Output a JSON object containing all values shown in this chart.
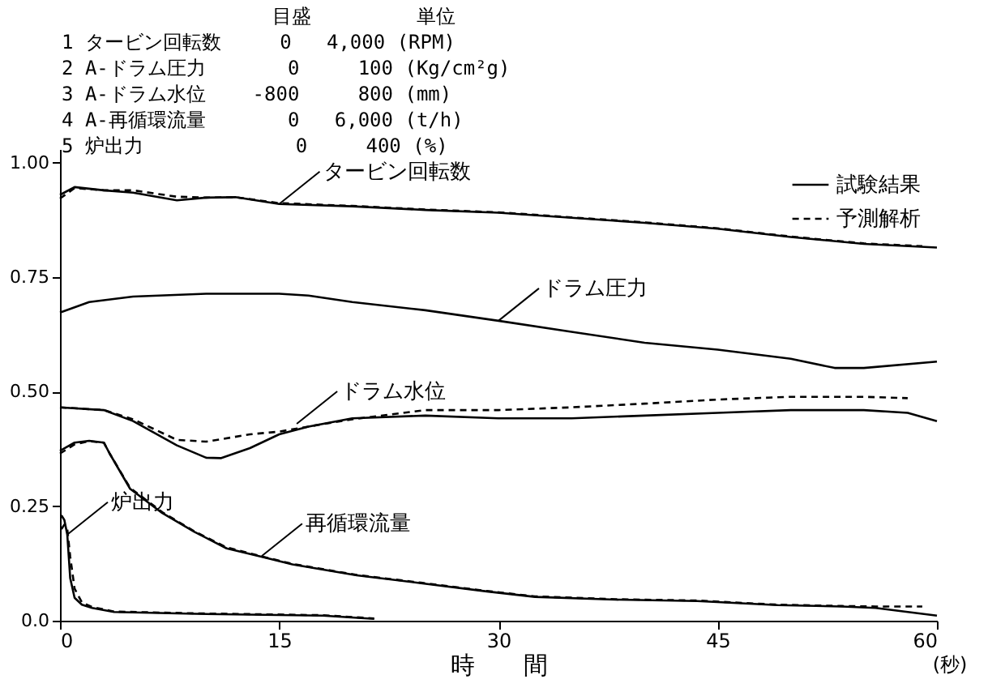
{
  "chart_data": {
    "type": "line",
    "xlabel": "時　　間",
    "xlim": [
      0,
      60
    ],
    "xticks": [
      0,
      15,
      30,
      45,
      60
    ],
    "ylim": [
      0,
      1.03
    ],
    "yticks": [
      {
        "value": 0,
        "label": "0.0"
      },
      {
        "value": 0.25,
        "label": "0.25"
      },
      {
        "value": 0.5,
        "label": "0.50"
      },
      {
        "value": 0.75,
        "label": "0.75"
      },
      {
        "value": 1,
        "label": "1.00"
      }
    ],
    "grid": false,
    "legend": "top right",
    "marker": "none",
    "annotations": [
      "                  目盛         単位",
      "1 タービン回転数     0   4,000 (RPM)",
      "2 A-ドラム圧力       0     100 (Kg/cm²g)",
      "3 A-ドラム水位    -800     800 (mm)",
      "4 A-再循環流量       0   6,000 (t/h)",
      "5 炉出力             0     400 (%)",
      {
        "text": "タービン回転数",
        "x": 15,
        "y": 0.91
      },
      {
        "text": "ドラム圧力",
        "x": 30,
        "y": 0.655
      },
      {
        "text": "ドラム水位",
        "x": 16.2,
        "y": 0.43
      },
      {
        "text": "再循環流量",
        "x": 13.8,
        "y": 0.141
      },
      {
        "text": "炉出力",
        "x": 0.5,
        "y": 0.188
      },
      "(秒)"
    ],
    "series": [
      {
        "name": "試験結果",
        "color": "#000000",
        "line_style": "solid",
        "x": [
          0,
          1,
          3,
          5,
          8,
          10,
          12,
          15,
          20,
          25,
          30,
          35,
          40,
          45,
          50,
          55,
          60
        ],
        "values": [
          0.93,
          0.947,
          0.94,
          0.935,
          0.918,
          0.924,
          0.925,
          0.91,
          0.905,
          0.897,
          0.891,
          0.88,
          0.869,
          0.856,
          0.838,
          0.823,
          0.815
        ]
      },
      {
        "name": "予測解析",
        "color": "#000000",
        "line_style": "dashed",
        "x": [
          0,
          1,
          3,
          5,
          8,
          10,
          12,
          15,
          20,
          25,
          30,
          35,
          40,
          45,
          50,
          55,
          59
        ],
        "values": [
          0.922,
          0.945,
          0.94,
          0.94,
          0.926,
          0.924,
          0.925,
          0.912,
          0.906,
          0.898,
          0.892,
          0.881,
          0.87,
          0.857,
          0.839,
          0.824,
          0.818
        ]
      },
      {
        "color": "#000000",
        "line_style": "solid",
        "x": [
          0,
          2,
          5,
          10,
          15,
          17,
          20,
          25,
          30,
          35,
          40,
          45,
          50,
          53,
          55,
          60
        ],
        "values": [
          0.673,
          0.696,
          0.708,
          0.714,
          0.714,
          0.71,
          0.696,
          0.678,
          0.655,
          0.631,
          0.607,
          0.592,
          0.572,
          0.552,
          0.552,
          0.566
        ]
      },
      {
        "color": "#000000",
        "line_style": "solid",
        "x": [
          0,
          3,
          5,
          8,
          10,
          11,
          13,
          15,
          17,
          20,
          25,
          30,
          35,
          40,
          45,
          50,
          55,
          58,
          60
        ],
        "values": [
          0.466,
          0.46,
          0.436,
          0.383,
          0.356,
          0.355,
          0.377,
          0.407,
          0.424,
          0.442,
          0.448,
          0.442,
          0.442,
          0.448,
          0.454,
          0.46,
          0.46,
          0.454,
          0.436
        ]
      },
      {
        "color": "#000000",
        "line_style": "dashed",
        "x": [
          0,
          3,
          5,
          8,
          10,
          13,
          15,
          17,
          20,
          25,
          30,
          35,
          40,
          45,
          50,
          55,
          58
        ],
        "values": [
          0.466,
          0.46,
          0.44,
          0.395,
          0.391,
          0.407,
          0.413,
          0.424,
          0.44,
          0.46,
          0.46,
          0.466,
          0.474,
          0.483,
          0.489,
          0.489,
          0.486
        ]
      },
      {
        "color": "#000000",
        "line_style": "solid",
        "x": [
          0,
          1,
          2,
          3,
          3.4,
          4.8,
          7,
          9.2,
          11.4,
          13.6,
          15.9,
          20.3,
          24.7,
          29.2,
          32.5,
          38,
          43.6,
          49.1,
          53.5,
          55.8,
          60
        ],
        "values": [
          0.371,
          0.389,
          0.393,
          0.389,
          0.365,
          0.288,
          0.235,
          0.194,
          0.158,
          0.141,
          0.123,
          0.099,
          0.082,
          0.064,
          0.052,
          0.046,
          0.043,
          0.034,
          0.031,
          0.028,
          0.011
        ]
      },
      {
        "color": "#000000",
        "line_style": "dashed",
        "x": [
          0,
          1,
          2,
          3,
          3.4,
          4.8,
          7,
          9.2,
          11.4,
          13.6,
          15.9,
          20.3,
          24.7,
          29.2,
          32.5,
          38,
          43.6,
          49.1,
          53.5,
          55.8,
          59
        ],
        "values": [
          0.365,
          0.385,
          0.392,
          0.389,
          0.365,
          0.29,
          0.237,
          0.195,
          0.16,
          0.142,
          0.124,
          0.1,
          0.083,
          0.065,
          0.053,
          0.047,
          0.044,
          0.035,
          0.032,
          0.031,
          0.031
        ]
      },
      {
        "color": "#000000",
        "line_style": "solid",
        "x": [
          0.1,
          0.3,
          0.5,
          0.7,
          1,
          1.5,
          2.2,
          3.7,
          9.3,
          18,
          21.5
        ],
        "values": [
          0.23,
          0.22,
          0.188,
          0.093,
          0.05,
          0.035,
          0.028,
          0.019,
          0.015,
          0.011,
          0.004
        ]
      },
      {
        "color": "#000000",
        "line_style": "dashed",
        "x": [
          0.1,
          0.3,
          0.5,
          0.7,
          1,
          1.5,
          2.2,
          3.7,
          9.3,
          18,
          21.5
        ],
        "values": [
          0.2,
          0.21,
          0.2,
          0.14,
          0.07,
          0.04,
          0.03,
          0.02,
          0.016,
          0.012,
          0.005
        ]
      }
    ]
  }
}
